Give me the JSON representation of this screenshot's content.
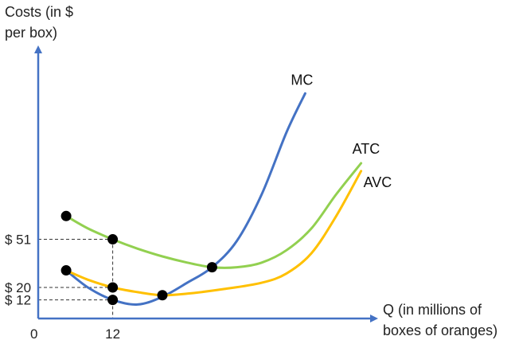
{
  "chart_data": {
    "type": "line",
    "ylabel_lines": [
      "Costs (in $",
      "per box)"
    ],
    "xlabel_lines": [
      "Q (in millions of",
      "boxes of oranges)"
    ],
    "origin_label": "0",
    "x_ticks": [
      {
        "value": 12,
        "label": "12"
      }
    ],
    "y_ticks": [
      {
        "value": 51,
        "label": "$ 51"
      },
      {
        "value": 20,
        "label": "$ 20"
      },
      {
        "value": 12,
        "label": "$ 12"
      }
    ],
    "series": [
      {
        "name": "MC",
        "color": "#4472C4",
        "points": [
          [
            4.5,
            31
          ],
          [
            8,
            20
          ],
          [
            12,
            12
          ],
          [
            16,
            9
          ],
          [
            20,
            14
          ],
          [
            24,
            23
          ],
          [
            28,
            33
          ],
          [
            32,
            50
          ],
          [
            36,
            80
          ],
          [
            40,
            120
          ],
          [
            43,
            145
          ]
        ]
      },
      {
        "name": "ATC",
        "color": "#92D050",
        "points": [
          [
            4.5,
            66
          ],
          [
            8,
            58
          ],
          [
            12,
            51
          ],
          [
            16,
            45
          ],
          [
            20,
            40
          ],
          [
            24,
            36
          ],
          [
            28,
            33
          ],
          [
            32,
            33
          ],
          [
            36,
            36
          ],
          [
            40,
            44
          ],
          [
            44,
            58
          ],
          [
            48,
            80
          ],
          [
            52,
            100
          ]
        ]
      },
      {
        "name": "AVC",
        "color": "#FFC000",
        "points": [
          [
            4.5,
            31
          ],
          [
            8,
            25
          ],
          [
            12,
            20
          ],
          [
            16,
            17
          ],
          [
            20,
            15
          ],
          [
            24,
            16
          ],
          [
            30,
            19
          ],
          [
            36,
            23
          ],
          [
            40,
            29
          ],
          [
            44,
            42
          ],
          [
            48,
            66
          ],
          [
            52,
            95
          ]
        ]
      }
    ],
    "markers": [
      {
        "x": 4.5,
        "y": 66
      },
      {
        "x": 12,
        "y": 51
      },
      {
        "x": 4.5,
        "y": 31
      },
      {
        "x": 12,
        "y": 20
      },
      {
        "x": 12,
        "y": 12
      },
      {
        "x": 20,
        "y": 15
      },
      {
        "x": 28,
        "y": 33
      }
    ],
    "guides": [
      {
        "x": 12,
        "y": 51
      },
      {
        "x": 12,
        "y": 20
      },
      {
        "x": 12,
        "y": 12
      }
    ],
    "xlim": [
      0,
      60
    ],
    "ylim": [
      0,
      150
    ],
    "grid": false,
    "colors": {
      "axis": "#4472C4",
      "marker": "#000000",
      "guide": "#333333"
    }
  }
}
